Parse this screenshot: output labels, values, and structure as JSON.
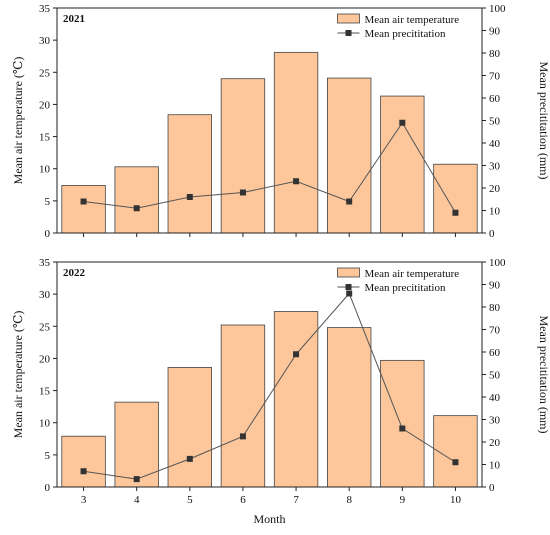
{
  "chart_data": [
    {
      "type": "bar",
      "panel_label": "2021",
      "categories": [
        "3",
        "4",
        "5",
        "6",
        "7",
        "8",
        "9",
        "10"
      ],
      "series": [
        {
          "name": "Mean air temperature",
          "type": "bar",
          "axis": "left",
          "values": [
            7.4,
            10.3,
            18.4,
            24.0,
            28.1,
            24.1,
            21.3,
            10.7
          ]
        },
        {
          "name": "Mean precititation",
          "type": "line",
          "axis": "right",
          "values": [
            14,
            11,
            16,
            18,
            23,
            14,
            49,
            9
          ]
        }
      ],
      "xlabel": "",
      "ylabel_left": "Mean air temperature (℃)",
      "ylabel_right": "Mean precititation (mm)",
      "ylim_left": [
        0,
        35
      ],
      "yticks_left": [
        0,
        5,
        10,
        15,
        20,
        25,
        30,
        35
      ],
      "ylim_right": [
        0,
        100
      ],
      "yticks_right": [
        0,
        10,
        20,
        30,
        40,
        50,
        60,
        70,
        80,
        90,
        100
      ],
      "legend_position": "top-right",
      "colors": {
        "bar_fill": "#FDC79B",
        "bar_stroke": "#444444",
        "line": "#555555",
        "marker": "#333333"
      }
    },
    {
      "type": "bar",
      "panel_label": "2022",
      "categories": [
        "3",
        "4",
        "5",
        "6",
        "7",
        "8",
        "9",
        "10"
      ],
      "series": [
        {
          "name": "Mean air temperature",
          "type": "bar",
          "axis": "left",
          "values": [
            7.9,
            13.2,
            18.6,
            25.2,
            27.3,
            24.8,
            19.7,
            11.1
          ]
        },
        {
          "name": "Mean precititation",
          "type": "line",
          "axis": "right",
          "values": [
            7,
            3.5,
            12.5,
            22.5,
            59,
            86,
            26,
            11
          ]
        }
      ],
      "xlabel": "Month",
      "ylabel_left": "Mean air temperature (℃)",
      "ylabel_right": "Mean precititation (mm)",
      "ylim_left": [
        0,
        35
      ],
      "yticks_left": [
        0,
        5,
        10,
        15,
        20,
        25,
        30,
        35
      ],
      "ylim_right": [
        0,
        100
      ],
      "yticks_right": [
        0,
        10,
        20,
        30,
        40,
        50,
        60,
        70,
        80,
        90,
        100
      ],
      "legend_position": "top-right",
      "colors": {
        "bar_fill": "#FDC79B",
        "bar_stroke": "#444444",
        "line": "#555555",
        "marker": "#333333"
      }
    }
  ]
}
